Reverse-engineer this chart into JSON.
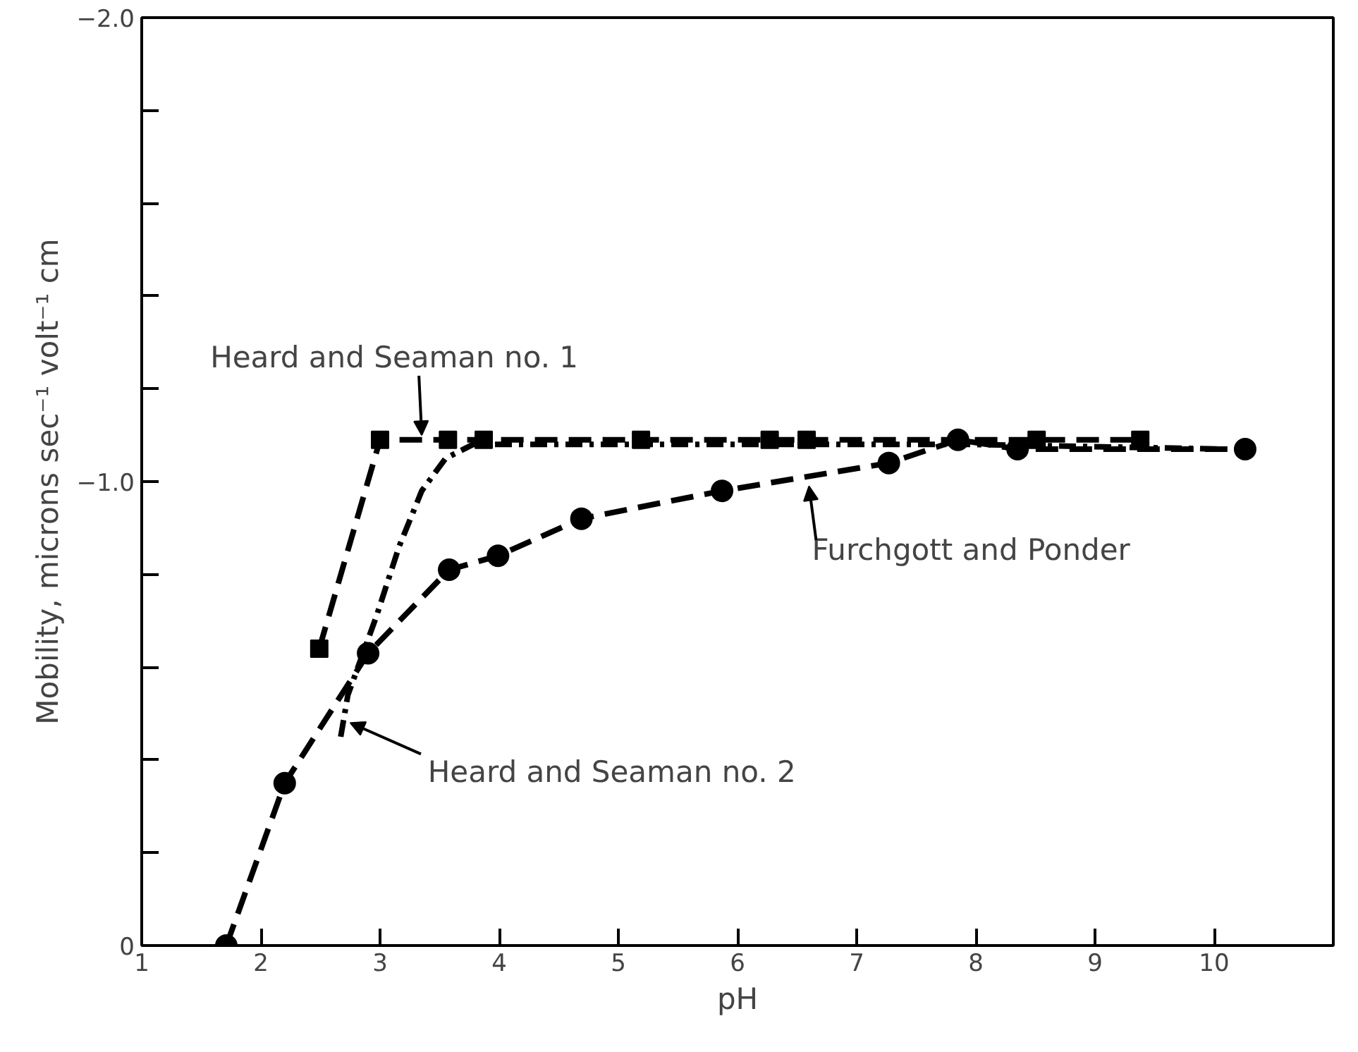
{
  "chart_data": {
    "type": "line",
    "xlabel": "pH",
    "ylabel": "Mobility, microns sec⁻¹ volt⁻¹ cm",
    "xlim": [
      1,
      11
    ],
    "xticks": [
      1,
      2,
      3,
      4,
      5,
      6,
      7,
      8,
      9,
      10
    ],
    "ylim": [
      0,
      -2.0
    ],
    "yticks": [
      {
        "value": 0,
        "label": "0"
      },
      {
        "value": -0.2,
        "label": null
      },
      {
        "value": -0.4,
        "label": null
      },
      {
        "value": -0.6,
        "label": null
      },
      {
        "value": -0.8,
        "label": null
      },
      {
        "value": -1.0,
        "label": "−1.0"
      },
      {
        "value": -1.2,
        "label": null
      },
      {
        "value": -1.4,
        "label": null
      },
      {
        "value": -1.6,
        "label": null
      },
      {
        "value": -1.8,
        "label": null
      },
      {
        "value": -2.0,
        "label": "−2.0"
      }
    ],
    "grid": false,
    "series": [
      {
        "color": "#000000",
        "marker": "circle",
        "line_style": "dashed",
        "x": [
          1.71,
          2.2,
          2.9,
          3.58,
          3.99,
          4.69,
          5.87,
          7.27,
          7.85,
          8.35,
          10.26
        ],
        "values": [
          0,
          -0.35,
          -0.63,
          -0.81,
          -0.84,
          -0.92,
          -0.98,
          -1.04,
          -1.09,
          -1.07,
          -1.07
        ]
      },
      {
        "color": "#000000",
        "marker": "square",
        "line_style": "dashed",
        "x": [
          2.49,
          3.0,
          3.57,
          3.87,
          5.19,
          6.27,
          6.58,
          8.51,
          9.38
        ],
        "values": [
          -0.64,
          -1.09,
          -1.09,
          -1.09,
          -1.09,
          -1.09,
          -1.09,
          -1.09,
          -1.09
        ]
      },
      {
        "color": "#000000",
        "marker": "none",
        "line_style": "dashdot",
        "x": [
          2.67,
          2.73,
          2.97,
          3.16,
          3.35,
          3.55,
          3.78,
          4.5,
          6.0,
          8.0,
          10.1
        ],
        "values": [
          -0.45,
          -0.54,
          -0.71,
          -0.86,
          -0.98,
          -1.05,
          -1.08,
          -1.08,
          -1.08,
          -1.08,
          -1.07
        ]
      }
    ],
    "annotations": [
      {
        "text": "Heard and Seaman no. 1",
        "x": 3.35,
        "y": -1.1
      },
      {
        "text": "Furchgott and Ponder",
        "x": 6.6,
        "y": -0.99
      },
      {
        "text": "Heard and Seaman no. 2",
        "x": 2.75,
        "y": -0.48
      }
    ]
  }
}
